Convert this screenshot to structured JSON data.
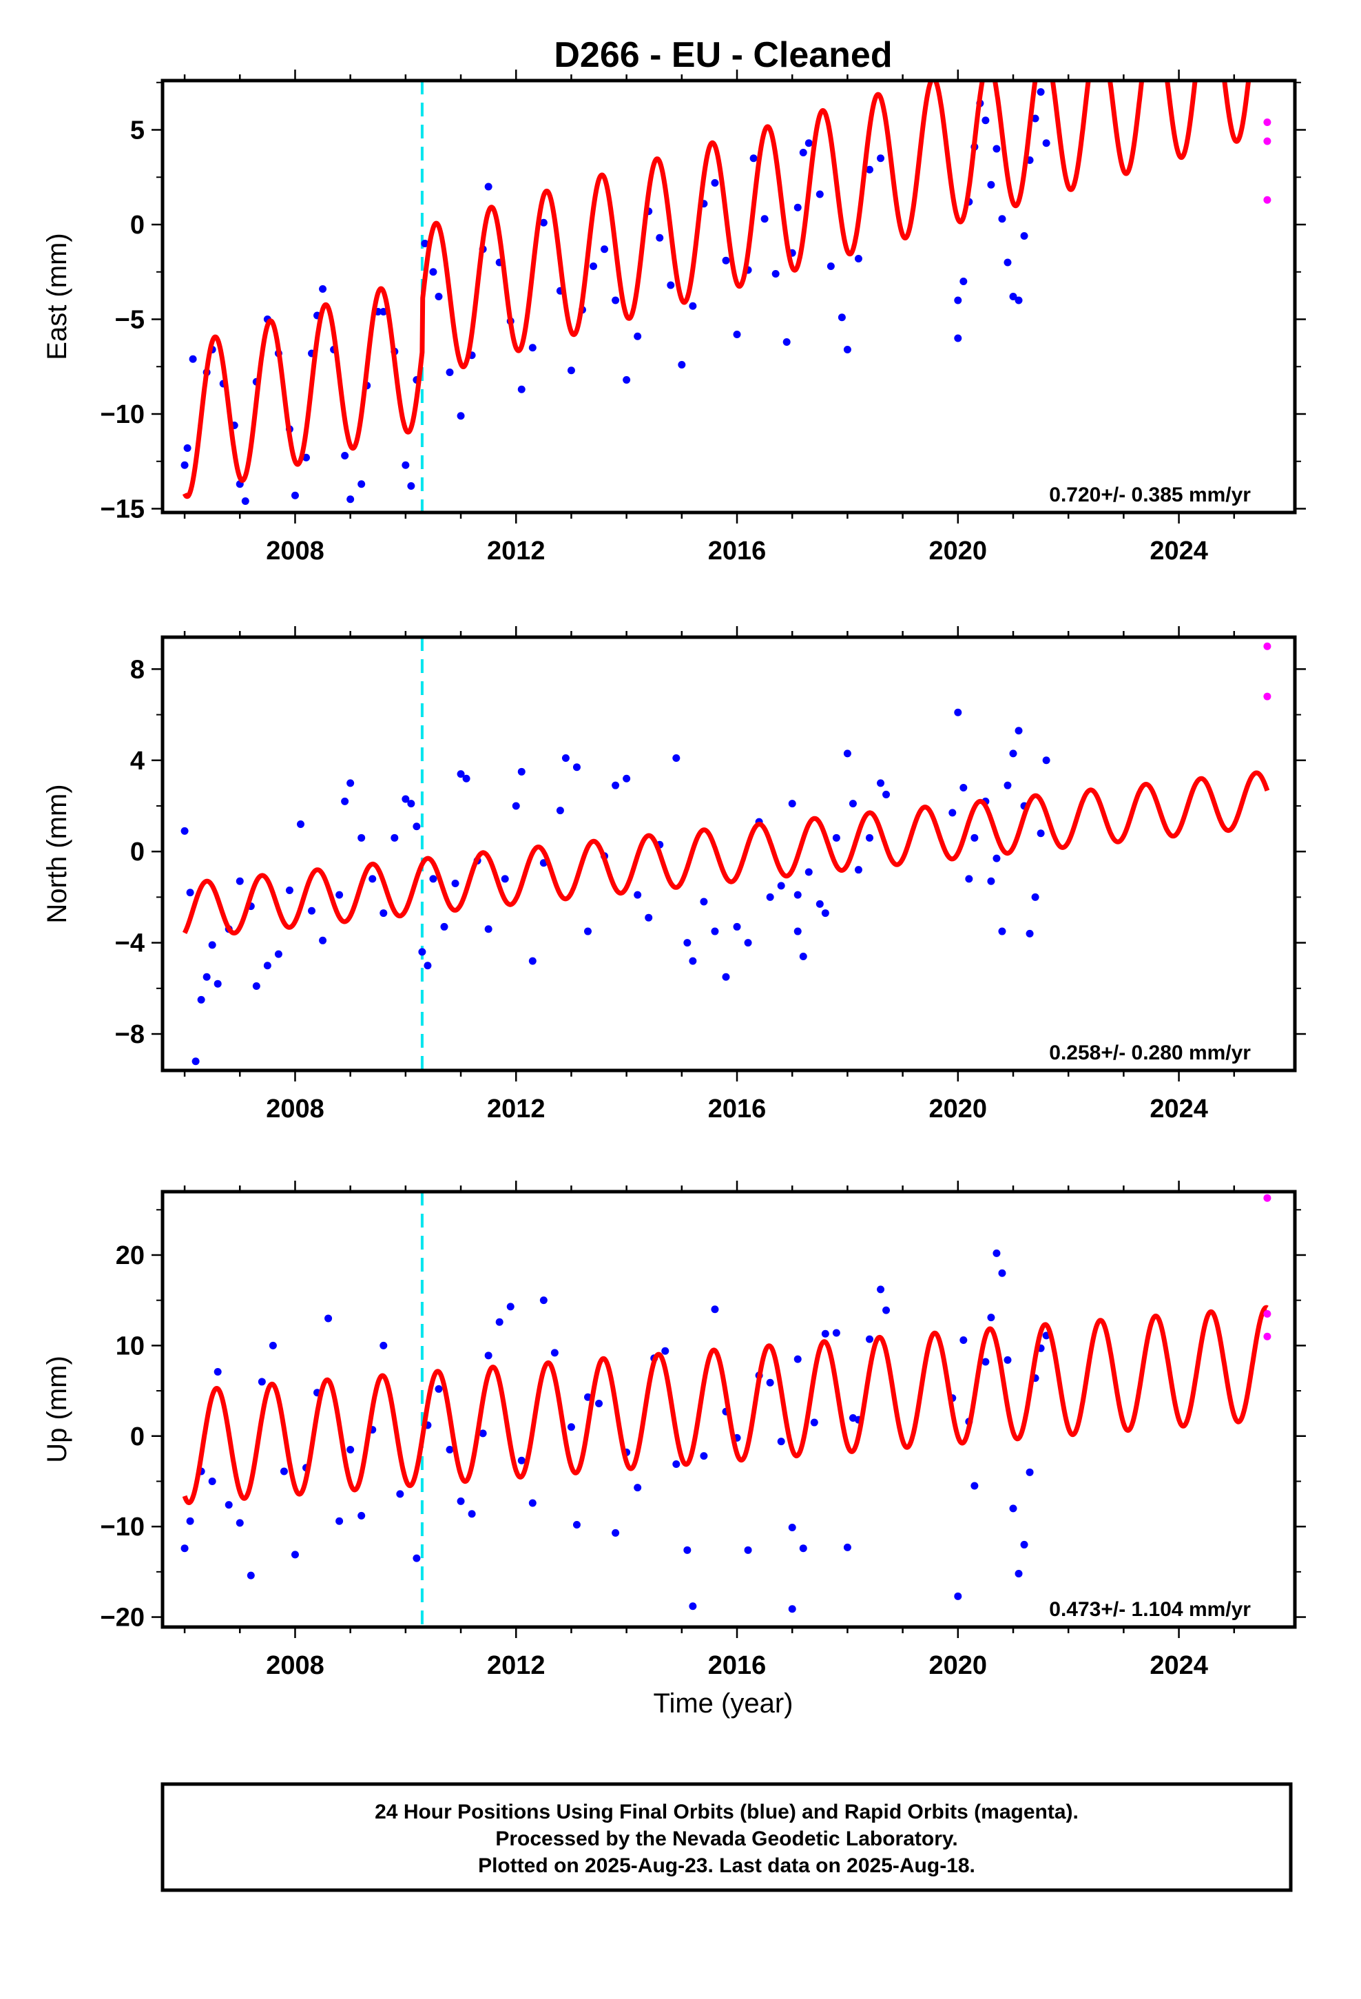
{
  "title": "D266  - EU - Cleaned",
  "xlabel": "Time (year)",
  "x_ticks": [
    2008,
    2012,
    2016,
    2020,
    2024
  ],
  "footer": {
    "line1": "24 Hour Positions Using Final Orbits (blue) and Rapid Orbits (magenta).",
    "line2": "Processed by the Nevada Geodetic Laboratory.",
    "line3": "Plotted on 2025-Aug-23. Last data on 2025-Aug-18."
  },
  "colors": {
    "final_orbits": "#0000ff",
    "rapid_orbits": "#ff00ff",
    "model": "#ff0000",
    "equipment_change": "#00e5ee"
  },
  "chart_data": [
    {
      "type": "scatter",
      "component": "East",
      "ylabel": "East (mm)",
      "xlim": [
        2005.6,
        2026.1
      ],
      "ylim": [
        -15.2,
        7.6
      ],
      "y_ticks": [
        -15,
        -10,
        -5,
        0,
        5
      ],
      "rate_label": "0.720+/- 0.385 mm/yr",
      "equipment_change_year": 2010.3,
      "model": {
        "start": 2006.0,
        "end": 2025.6,
        "intercept": -10.4,
        "slope": 0.85,
        "amplitude": 4.0,
        "phase_peak": 0.55,
        "step": {
          "year": 2010.3,
          "size": 2.6
        }
      },
      "final_orbits": [
        [
          2006.0,
          -12.7
        ],
        [
          2006.05,
          -11.8
        ],
        [
          2006.15,
          -7.1
        ],
        [
          2006.4,
          -7.8
        ],
        [
          2006.5,
          -6.6
        ],
        [
          2006.7,
          -8.4
        ],
        [
          2006.9,
          -10.6
        ],
        [
          2007.0,
          -13.7
        ],
        [
          2007.1,
          -14.6
        ],
        [
          2007.3,
          -8.3
        ],
        [
          2007.5,
          -5.0
        ],
        [
          2007.7,
          -6.8
        ],
        [
          2007.9,
          -10.8
        ],
        [
          2008.0,
          -14.3
        ],
        [
          2008.2,
          -12.3
        ],
        [
          2008.3,
          -6.8
        ],
        [
          2008.4,
          -4.8
        ],
        [
          2008.5,
          -3.4
        ],
        [
          2008.7,
          -6.6
        ],
        [
          2008.9,
          -12.2
        ],
        [
          2009.0,
          -14.5
        ],
        [
          2009.2,
          -13.7
        ],
        [
          2009.3,
          -8.5
        ],
        [
          2009.5,
          -4.6
        ],
        [
          2009.6,
          -4.6
        ],
        [
          2009.8,
          -6.7
        ],
        [
          2010.0,
          -12.7
        ],
        [
          2010.1,
          -13.8
        ],
        [
          2010.2,
          -8.2
        ],
        [
          2010.35,
          -1.0
        ],
        [
          2010.5,
          -2.5
        ],
        [
          2010.6,
          -3.8
        ],
        [
          2010.8,
          -7.8
        ],
        [
          2011.0,
          -10.1
        ],
        [
          2011.2,
          -6.9
        ],
        [
          2011.4,
          -1.3
        ],
        [
          2011.5,
          2.0
        ],
        [
          2011.7,
          -2.0
        ],
        [
          2011.9,
          -5.1
        ],
        [
          2012.1,
          -8.7
        ],
        [
          2012.3,
          -6.5
        ],
        [
          2012.5,
          0.1
        ],
        [
          2012.8,
          -3.5
        ],
        [
          2013.0,
          -7.7
        ],
        [
          2013.2,
          -4.5
        ],
        [
          2013.4,
          -2.2
        ],
        [
          2013.6,
          -1.3
        ],
        [
          2013.8,
          -4.0
        ],
        [
          2014.0,
          -8.2
        ],
        [
          2014.2,
          -5.9
        ],
        [
          2014.4,
          0.7
        ],
        [
          2014.6,
          -0.7
        ],
        [
          2014.8,
          -3.2
        ],
        [
          2015.0,
          -7.4
        ],
        [
          2015.2,
          -4.3
        ],
        [
          2015.4,
          1.1
        ],
        [
          2015.6,
          2.2
        ],
        [
          2015.8,
          -1.9
        ],
        [
          2016.0,
          -5.8
        ],
        [
          2016.2,
          -2.4
        ],
        [
          2016.3,
          3.5
        ],
        [
          2016.5,
          0.3
        ],
        [
          2016.7,
          -2.6
        ],
        [
          2016.9,
          -6.2
        ],
        [
          2017.0,
          -1.5
        ],
        [
          2017.1,
          0.9
        ],
        [
          2017.2,
          3.8
        ],
        [
          2017.3,
          4.3
        ],
        [
          2017.5,
          1.6
        ],
        [
          2017.7,
          -2.2
        ],
        [
          2017.9,
          -4.9
        ],
        [
          2018.0,
          -6.6
        ],
        [
          2018.2,
          -1.8
        ],
        [
          2018.4,
          2.9
        ],
        [
          2018.6,
          3.5
        ],
        [
          2020.0,
          -4.0
        ],
        [
          2020.0,
          -6.0
        ],
        [
          2020.1,
          -3.0
        ],
        [
          2020.2,
          1.2
        ],
        [
          2020.3,
          4.1
        ],
        [
          2020.4,
          6.4
        ],
        [
          2020.5,
          5.5
        ],
        [
          2020.6,
          2.1
        ],
        [
          2020.7,
          4.0
        ],
        [
          2020.8,
          0.3
        ],
        [
          2020.9,
          -2.0
        ],
        [
          2021.0,
          -3.8
        ],
        [
          2021.1,
          -4.0
        ],
        [
          2021.2,
          -0.6
        ],
        [
          2021.3,
          3.4
        ],
        [
          2021.4,
          5.6
        ],
        [
          2021.5,
          7.0
        ],
        [
          2021.6,
          4.3
        ]
      ],
      "rapid_orbits": [
        [
          2025.6,
          5.4
        ],
        [
          2025.6,
          4.4
        ],
        [
          2025.6,
          1.3
        ]
      ]
    },
    {
      "type": "scatter",
      "component": "North",
      "ylabel": "North (mm)",
      "xlim": [
        2005.6,
        2026.1
      ],
      "ylim": [
        -9.6,
        9.4
      ],
      "y_ticks": [
        -8,
        -4,
        0,
        4,
        8
      ],
      "rate_label": "0.258+/- 0.280 mm/yr",
      "equipment_change_year": 2010.3,
      "model": {
        "start": 2006.0,
        "end": 2025.6,
        "intercept": -2.6,
        "slope": 0.25,
        "amplitude": 1.2,
        "phase_peak": 0.4,
        "step": {
          "year": 2010.3,
          "size": 0.0
        }
      },
      "final_orbits": [
        [
          2006.0,
          0.9
        ],
        [
          2006.1,
          -1.8
        ],
        [
          2006.2,
          -9.2
        ],
        [
          2006.3,
          -6.5
        ],
        [
          2006.4,
          -5.5
        ],
        [
          2006.5,
          -4.1
        ],
        [
          2006.6,
          -5.8
        ],
        [
          2006.8,
          -3.4
        ],
        [
          2007.0,
          -1.3
        ],
        [
          2007.2,
          -2.4
        ],
        [
          2007.3,
          -5.9
        ],
        [
          2007.5,
          -5.0
        ],
        [
          2007.7,
          -4.5
        ],
        [
          2007.9,
          -1.7
        ],
        [
          2008.1,
          1.2
        ],
        [
          2008.3,
          -2.6
        ],
        [
          2008.5,
          -3.9
        ],
        [
          2008.8,
          -1.9
        ],
        [
          2008.9,
          2.2
        ],
        [
          2009.0,
          3.0
        ],
        [
          2009.2,
          0.6
        ],
        [
          2009.4,
          -1.2
        ],
        [
          2009.6,
          -2.7
        ],
        [
          2009.8,
          0.6
        ],
        [
          2010.0,
          2.3
        ],
        [
          2010.1,
          2.1
        ],
        [
          2010.2,
          1.1
        ],
        [
          2010.3,
          -4.4
        ],
        [
          2010.4,
          -5.0
        ],
        [
          2010.5,
          -1.2
        ],
        [
          2010.7,
          -3.3
        ],
        [
          2010.9,
          -1.4
        ],
        [
          2011.0,
          3.4
        ],
        [
          2011.1,
          3.2
        ],
        [
          2011.3,
          -0.4
        ],
        [
          2011.5,
          -3.4
        ],
        [
          2011.8,
          -1.2
        ],
        [
          2012.0,
          2.0
        ],
        [
          2012.1,
          3.5
        ],
        [
          2012.3,
          -4.8
        ],
        [
          2012.5,
          -0.5
        ],
        [
          2012.8,
          1.8
        ],
        [
          2012.9,
          4.1
        ],
        [
          2013.1,
          3.7
        ],
        [
          2013.3,
          -3.5
        ],
        [
          2013.6,
          -0.2
        ],
        [
          2013.8,
          2.9
        ],
        [
          2014.0,
          3.2
        ],
        [
          2014.2,
          -1.9
        ],
        [
          2014.4,
          -2.9
        ],
        [
          2014.6,
          0.3
        ],
        [
          2014.9,
          4.1
        ],
        [
          2015.1,
          -4.0
        ],
        [
          2015.2,
          -4.8
        ],
        [
          2015.4,
          -2.2
        ],
        [
          2015.6,
          -3.5
        ],
        [
          2015.8,
          -5.5
        ],
        [
          2016.0,
          -3.3
        ],
        [
          2016.2,
          -4.0
        ],
        [
          2016.4,
          1.3
        ],
        [
          2016.6,
          -2.0
        ],
        [
          2016.8,
          -1.5
        ],
        [
          2017.0,
          2.1
        ],
        [
          2017.1,
          -1.9
        ],
        [
          2017.1,
          -3.5
        ],
        [
          2017.2,
          -4.6
        ],
        [
          2017.3,
          -0.9
        ],
        [
          2017.5,
          -2.3
        ],
        [
          2017.6,
          -2.7
        ],
        [
          2017.8,
          0.6
        ],
        [
          2018.0,
          4.3
        ],
        [
          2018.1,
          2.1
        ],
        [
          2018.2,
          -0.8
        ],
        [
          2018.4,
          0.6
        ],
        [
          2018.6,
          3.0
        ],
        [
          2018.7,
          2.5
        ],
        [
          2019.9,
          1.7
        ],
        [
          2020.0,
          6.1
        ],
        [
          2020.1,
          2.8
        ],
        [
          2020.2,
          -1.2
        ],
        [
          2020.3,
          0.6
        ],
        [
          2020.5,
          2.2
        ],
        [
          2020.6,
          -1.3
        ],
        [
          2020.7,
          -0.3
        ],
        [
          2020.8,
          -3.5
        ],
        [
          2020.9,
          2.9
        ],
        [
          2021.0,
          4.3
        ],
        [
          2021.1,
          5.3
        ],
        [
          2021.2,
          2.0
        ],
        [
          2021.3,
          -3.6
        ],
        [
          2021.4,
          -2.0
        ],
        [
          2021.5,
          0.8
        ],
        [
          2021.6,
          4.0
        ]
      ],
      "rapid_orbits": [
        [
          2025.6,
          9.0
        ],
        [
          2025.6,
          6.8
        ]
      ]
    },
    {
      "type": "scatter",
      "component": "Up",
      "ylabel": "Up (mm)",
      "xlim": [
        2005.6,
        2026.1
      ],
      "ylim": [
        -21.1,
        27.0
      ],
      "y_ticks": [
        -20,
        -10,
        0,
        10,
        20
      ],
      "rate_label": "0.473+/- 1.104 mm/yr",
      "equipment_change_year": 2010.3,
      "model": {
        "start": 2006.0,
        "end": 2025.6,
        "intercept": -1.2,
        "slope": 0.47,
        "amplitude": 6.2,
        "phase_peak": 0.58,
        "step": {
          "year": 2010.3,
          "size": 0.0
        }
      },
      "final_orbits": [
        [
          2006.0,
          -12.4
        ],
        [
          2006.1,
          -9.4
        ],
        [
          2006.3,
          -3.9
        ],
        [
          2006.5,
          -5.0
        ],
        [
          2006.6,
          7.1
        ],
        [
          2006.8,
          -7.6
        ],
        [
          2007.0,
          -9.6
        ],
        [
          2007.2,
          -15.4
        ],
        [
          2007.4,
          6.0
        ],
        [
          2007.6,
          10.0
        ],
        [
          2007.8,
          -3.9
        ],
        [
          2008.0,
          -13.1
        ],
        [
          2008.2,
          -3.5
        ],
        [
          2008.4,
          4.8
        ],
        [
          2008.6,
          13.0
        ],
        [
          2008.8,
          -9.4
        ],
        [
          2009.0,
          -1.5
        ],
        [
          2009.2,
          -8.8
        ],
        [
          2009.4,
          0.7
        ],
        [
          2009.6,
          10.0
        ],
        [
          2009.9,
          -6.4
        ],
        [
          2010.2,
          -13.5
        ],
        [
          2010.4,
          1.2
        ],
        [
          2010.6,
          5.2
        ],
        [
          2010.8,
          -1.5
        ],
        [
          2011.0,
          -7.2
        ],
        [
          2011.2,
          -8.6
        ],
        [
          2011.4,
          0.3
        ],
        [
          2011.5,
          8.9
        ],
        [
          2011.7,
          12.6
        ],
        [
          2011.9,
          14.3
        ],
        [
          2012.1,
          -2.7
        ],
        [
          2012.3,
          -7.4
        ],
        [
          2012.5,
          15.0
        ],
        [
          2012.7,
          9.2
        ],
        [
          2013.0,
          1.0
        ],
        [
          2013.1,
          -9.8
        ],
        [
          2013.3,
          4.3
        ],
        [
          2013.5,
          3.6
        ],
        [
          2013.8,
          -10.7
        ],
        [
          2014.0,
          -1.8
        ],
        [
          2014.2,
          -5.7
        ],
        [
          2014.5,
          8.6
        ],
        [
          2014.7,
          9.4
        ],
        [
          2014.9,
          -3.1
        ],
        [
          2015.1,
          -12.6
        ],
        [
          2015.2,
          -18.8
        ],
        [
          2015.4,
          -2.2
        ],
        [
          2015.6,
          14.0
        ],
        [
          2015.8,
          2.7
        ],
        [
          2016.0,
          -0.2
        ],
        [
          2016.2,
          -12.6
        ],
        [
          2016.4,
          6.7
        ],
        [
          2016.6,
          5.9
        ],
        [
          2016.8,
          -0.6
        ],
        [
          2017.0,
          -10.1
        ],
        [
          2017.0,
          -19.1
        ],
        [
          2017.1,
          8.5
        ],
        [
          2017.2,
          -12.4
        ],
        [
          2017.4,
          1.5
        ],
        [
          2017.6,
          11.3
        ],
        [
          2017.8,
          11.4
        ],
        [
          2018.0,
          -12.3
        ],
        [
          2018.1,
          2.0
        ],
        [
          2018.2,
          1.8
        ],
        [
          2018.4,
          10.7
        ],
        [
          2018.6,
          16.2
        ],
        [
          2018.7,
          13.9
        ],
        [
          2019.9,
          4.2
        ],
        [
          2020.0,
          -17.7
        ],
        [
          2020.1,
          10.6
        ],
        [
          2020.2,
          1.6
        ],
        [
          2020.3,
          -5.5
        ],
        [
          2020.5,
          8.2
        ],
        [
          2020.6,
          13.1
        ],
        [
          2020.7,
          20.2
        ],
        [
          2020.8,
          18.0
        ],
        [
          2020.9,
          8.4
        ],
        [
          2021.0,
          -8.0
        ],
        [
          2021.1,
          -15.2
        ],
        [
          2021.2,
          -12.0
        ],
        [
          2021.3,
          -4.0
        ],
        [
          2021.4,
          6.4
        ],
        [
          2021.5,
          9.7
        ],
        [
          2021.6,
          11.1
        ]
      ],
      "rapid_orbits": [
        [
          2025.6,
          26.3
        ],
        [
          2025.6,
          13.5
        ],
        [
          2025.6,
          11.0
        ]
      ]
    }
  ]
}
